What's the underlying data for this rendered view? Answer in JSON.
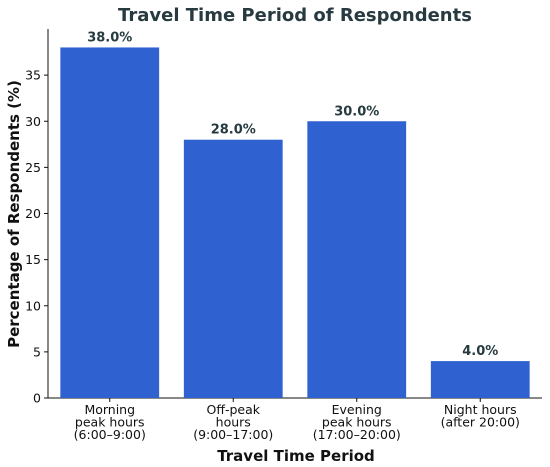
{
  "chart_data": {
    "type": "bar",
    "title": "Travel Time Period of Respondents",
    "xlabel": "Travel Time Period",
    "ylabel": "Percentage of Respondents (%)",
    "categories": [
      [
        "Morning",
        "peak hours",
        "(6:00–9:00)"
      ],
      [
        "Off-peak",
        "hours",
        "(9:00–17:00)"
      ],
      [
        "Evening",
        "peak hours",
        "(17:00–20:00)"
      ],
      [
        "Night hours",
        "(after 20:00)"
      ]
    ],
    "values": [
      38.0,
      28.0,
      30.0,
      4.0
    ],
    "data_labels": [
      "38.0%",
      "28.0%",
      "30.0%",
      "4.0%"
    ],
    "yticks": [
      0,
      5,
      10,
      15,
      20,
      25,
      30,
      35
    ],
    "ylim": [
      0,
      40
    ],
    "grid": false,
    "bar_color": "#2f62d0"
  }
}
